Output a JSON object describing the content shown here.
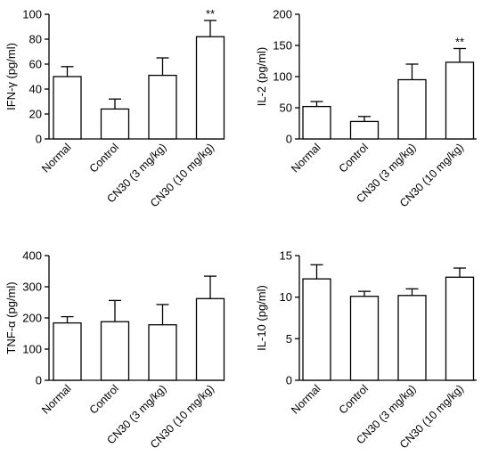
{
  "chart_data": [
    {
      "type": "bar",
      "ylabel": "IFN-γ  (pg/ml)",
      "ylim": [
        0,
        100
      ],
      "yticks": [
        0,
        20,
        40,
        60,
        80,
        100
      ],
      "categories": [
        "Normal",
        "Control",
        "CN30 (3 mg/kg)",
        "CN30  (10 mg/kg)"
      ],
      "values": [
        50,
        24,
        51,
        82
      ],
      "errors": [
        8,
        8,
        14,
        13
      ],
      "annotations": [
        "",
        "",
        "",
        "**"
      ]
    },
    {
      "type": "bar",
      "ylabel": "IL-2  (pg/ml)",
      "ylim": [
        0,
        200
      ],
      "yticks": [
        0,
        50,
        100,
        150,
        200
      ],
      "categories": [
        "Normal",
        "Control",
        "CN30 (3 mg/kg)",
        "CN30  (10 mg/kg)"
      ],
      "values": [
        52,
        28,
        95,
        123
      ],
      "errors": [
        8,
        8,
        25,
        22
      ],
      "annotations": [
        "",
        "",
        "",
        "**"
      ]
    },
    {
      "type": "bar",
      "ylabel": "TNF-α  (pg/ml)",
      "ylim": [
        0,
        400
      ],
      "yticks": [
        0,
        100,
        200,
        300,
        400
      ],
      "categories": [
        "Normal",
        "Control",
        "CN30 (3 mg/kg)",
        "CN30  (10 mg/kg)"
      ],
      "values": [
        184,
        188,
        178,
        262
      ],
      "errors": [
        20,
        68,
        65,
        72
      ],
      "annotations": [
        "",
        "",
        "",
        ""
      ]
    },
    {
      "type": "bar",
      "ylabel": "IL-10  (pg/ml)",
      "ylim": [
        0,
        15
      ],
      "yticks": [
        0,
        5,
        10,
        15
      ],
      "categories": [
        "Normal",
        "Control",
        "CN30 (3 mg/kg)",
        "CN30  (10 mg/kg)"
      ],
      "values": [
        12.2,
        10.1,
        10.2,
        12.4
      ],
      "errors": [
        1.7,
        0.6,
        0.8,
        1.1
      ],
      "annotations": [
        "",
        "",
        "",
        ""
      ]
    }
  ]
}
